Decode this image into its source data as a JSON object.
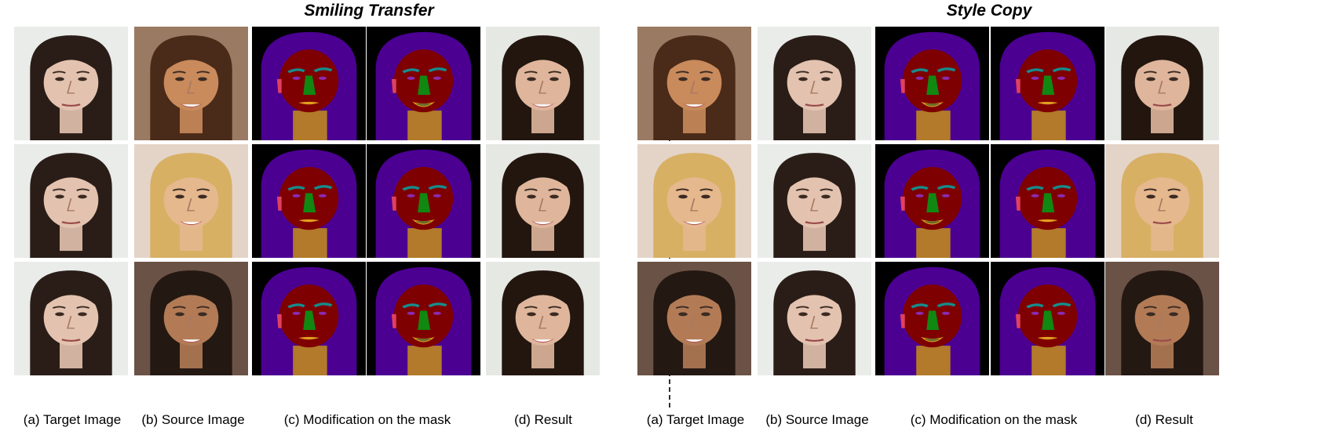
{
  "panels": [
    {
      "title": "Smiling Transfer",
      "labels": [
        "(a) Target Image",
        "(b) Source Image",
        "(c) Modification on the mask",
        "(d) Result"
      ]
    },
    {
      "title": "Style Copy",
      "labels": [
        "(a) Target Image",
        "(b) Source Image",
        "(c) Modification on the mask",
        "(d) Result"
      ]
    }
  ],
  "mask_colors": {
    "hair": "#4b0092",
    "skin": "#7f0000",
    "neck": "#b27a2a",
    "nose": "#118811",
    "brow": "#168c8c",
    "eye": "#8a2bb0",
    "lip": "#e0a020",
    "ear": "#e04060",
    "background": "#000000"
  },
  "face_palettes": {
    "brunette_fair": {
      "bg": "#e9ece9",
      "hair": "#2a1d17",
      "skin": "#e3c3b0"
    },
    "bangs_brown": {
      "bg": "#9a7a62",
      "hair": "#4a2a18",
      "skin": "#c98a5c"
    },
    "blonde": {
      "bg": "#e4d4c8",
      "hair": "#d8b064",
      "skin": "#e6b88e"
    },
    "long_hair_man": {
      "bg": "#6b5246",
      "hair": "#241812",
      "skin": "#b27b56"
    },
    "result_dark": {
      "bg": "#e6e8e4",
      "hair": "#22160f",
      "skin": "#dfb69c"
    }
  }
}
